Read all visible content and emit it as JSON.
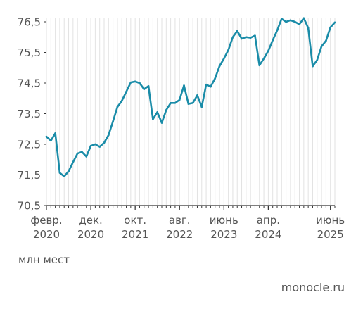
{
  "chart_data": {
    "type": "line",
    "ylim": [
      70.5,
      76.5
    ],
    "yticks": [
      70.5,
      71.5,
      72.5,
      73.5,
      74.5,
      75.5,
      76.5
    ],
    "ytick_labels": [
      "70,5",
      "71,5",
      "72,5",
      "73,5",
      "74,5",
      "75,5",
      "76,5"
    ],
    "xlim": [
      0,
      64
    ],
    "xticks": [
      {
        "month_index": 0,
        "line1": "февр.",
        "line2": "2020"
      },
      {
        "month_index": 10,
        "line1": "дек.",
        "line2": "2020"
      },
      {
        "month_index": 20,
        "line1": "окт.",
        "line2": "2021"
      },
      {
        "month_index": 30,
        "line1": "авг.",
        "line2": "2022"
      },
      {
        "month_index": 40,
        "line1": "июнь",
        "line2": "2023"
      },
      {
        "month_index": 50,
        "line1": "апр.",
        "line2": "2024"
      },
      {
        "month_index": 64,
        "line1": "июнь",
        "line2": "2025"
      }
    ],
    "grid": {
      "vertical": true,
      "horizontal": false
    },
    "line_color": "#1a8ca8",
    "series": [
      {
        "values": [
          72.75,
          72.62,
          72.86,
          71.57,
          71.45,
          71.62,
          71.92,
          72.2,
          72.25,
          72.1,
          72.45,
          72.5,
          72.42,
          72.55,
          72.8,
          73.25,
          73.72,
          73.92,
          74.22,
          74.52,
          74.55,
          74.5,
          74.3,
          74.4,
          73.32,
          73.55,
          73.2,
          73.62,
          73.85,
          73.85,
          73.95,
          74.42,
          73.82,
          73.85,
          74.1,
          73.72,
          74.45,
          74.38,
          74.65,
          75.05,
          75.3,
          75.58,
          76.0,
          76.2,
          75.95,
          76.0,
          75.98,
          76.05,
          75.08,
          75.3,
          75.55,
          75.9,
          76.22,
          76.6,
          76.5,
          76.55,
          76.5,
          76.42,
          76.62,
          76.3,
          75.05,
          75.25,
          75.7,
          75.88,
          76.32,
          76.48
        ]
      }
    ]
  },
  "unit_label": "млн мест",
  "source": "monocle.ru"
}
